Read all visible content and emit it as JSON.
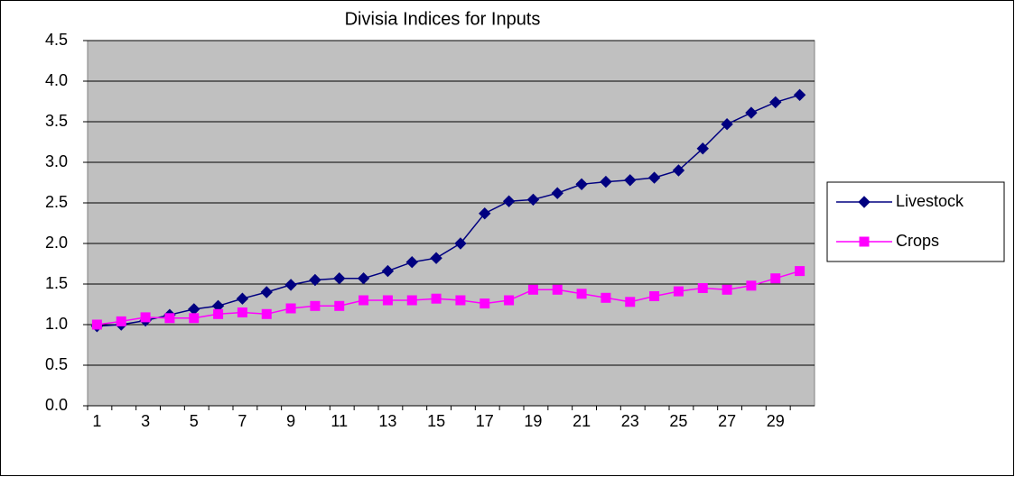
{
  "chart_data": {
    "type": "line",
    "title": "Divisia Indices for Inputs",
    "categories": [
      1,
      null,
      3,
      null,
      5,
      null,
      7,
      null,
      9,
      null,
      11,
      null,
      13,
      null,
      15,
      null,
      17,
      null,
      19,
      null,
      21,
      null,
      23,
      null,
      25,
      null,
      27,
      null,
      29,
      null
    ],
    "series": [
      {
        "name": "Livestock",
        "color": "#000080",
        "marker": "diamond",
        "values": [
          0.98,
          1.0,
          1.05,
          1.12,
          1.19,
          1.23,
          1.32,
          1.4,
          1.49,
          1.55,
          1.57,
          1.57,
          1.66,
          1.77,
          1.82,
          2.0,
          2.37,
          2.52,
          2.54,
          2.62,
          2.73,
          2.76,
          2.78,
          2.81,
          2.9,
          3.17,
          3.47,
          3.61,
          3.74,
          3.83
        ]
      },
      {
        "name": "Crops",
        "color": "#ff00ff",
        "marker": "square",
        "values": [
          1.0,
          1.04,
          1.09,
          1.08,
          1.08,
          1.13,
          1.15,
          1.13,
          1.2,
          1.23,
          1.23,
          1.3,
          1.3,
          1.3,
          1.32,
          1.3,
          1.26,
          1.3,
          1.43,
          1.43,
          1.38,
          1.33,
          1.28,
          1.35,
          1.41,
          1.45,
          1.43,
          1.48,
          1.57,
          1.66
        ]
      }
    ],
    "ylim": [
      0,
      4.5
    ],
    "yticks": [
      {
        "value": 0,
        "label": "0.0"
      },
      0.5,
      {
        "value": 1,
        "label": "1.0"
      },
      1.5,
      {
        "value": 2,
        "label": "2.0"
      },
      2.5,
      {
        "value": 3,
        "label": "3.0"
      },
      3.5,
      {
        "value": 4,
        "label": "4.0"
      },
      4.5
    ],
    "grid": true,
    "plot_background": "#c0c0c0",
    "legend": "right"
  }
}
